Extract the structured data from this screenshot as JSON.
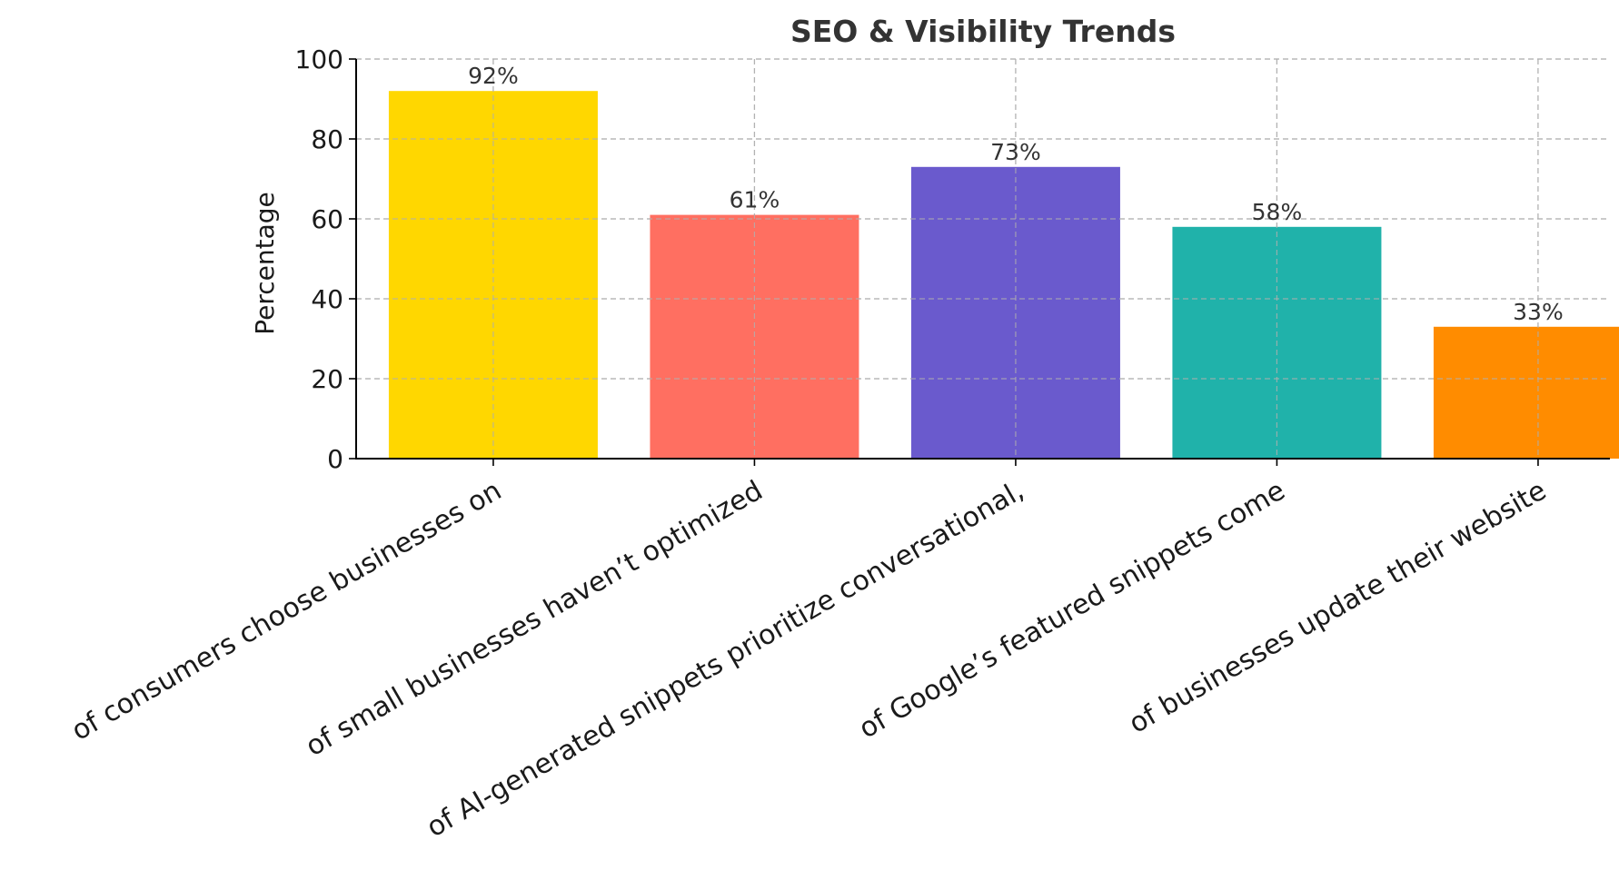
{
  "chart_data": {
    "type": "bar",
    "title": "SEO & Visibility Trends",
    "xlabel": "",
    "ylabel": "Percentage",
    "ylim": [
      0,
      100
    ],
    "yticks": [
      0,
      20,
      40,
      60,
      80,
      100
    ],
    "grid": true,
    "categories": [
      "of consumers choose businesses on",
      "of small businesses haven’t optimized",
      "of AI-generated snippets prioritize conversational,",
      "of Google’s featured snippets come",
      "of businesses update their website"
    ],
    "values": [
      92,
      61,
      73,
      58,
      33
    ],
    "data_labels": [
      "92%",
      "61%",
      "73%",
      "58%",
      "33%"
    ],
    "colors": [
      "#FFD700",
      "#FF6F61",
      "#6A5ACD",
      "#20B2AA",
      "#FF8C00"
    ]
  }
}
